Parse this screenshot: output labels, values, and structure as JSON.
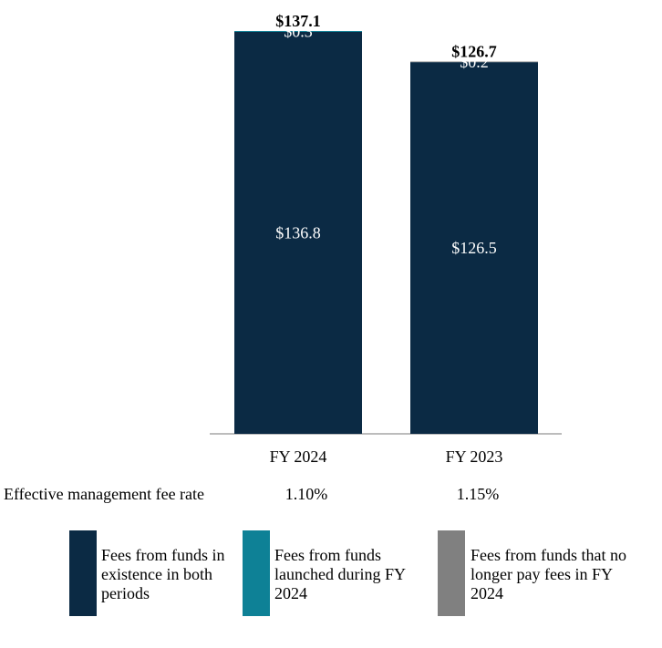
{
  "chart_data": {
    "type": "bar",
    "stacked": true,
    "categories": [
      "FY 2024",
      "FY 2023"
    ],
    "series": [
      {
        "name": "Fees from funds in existence in both periods",
        "color": "#0b2a44",
        "values": [
          136.8,
          126.5
        ],
        "labels": [
          "$136.8",
          "$126.5"
        ]
      },
      {
        "name": "Fees from funds launched during FY 2024",
        "color": "#0e8196",
        "values": [
          0.3,
          0
        ],
        "labels": [
          "$0.3",
          ""
        ]
      },
      {
        "name": "Fees from funds that no longer pay fees in FY 2024",
        "color": "#808080",
        "values": [
          0,
          0.2
        ],
        "labels": [
          "",
          "$0.2"
        ]
      }
    ],
    "totals": [
      "$137.1",
      "$126.7"
    ],
    "ylim": [
      0,
      137.1
    ]
  },
  "rate_row": {
    "label": "Effective management fee rate",
    "values": [
      "1.10%",
      "1.15%"
    ]
  },
  "legend": [
    {
      "text": "Fees from funds in existence in both periods",
      "color": "#0b2a44"
    },
    {
      "text": "Fees from funds launched during FY 2024",
      "color": "#0e8196"
    },
    {
      "text": "Fees from funds that no longer pay fees in FY 2024",
      "color": "#808080"
    }
  ]
}
